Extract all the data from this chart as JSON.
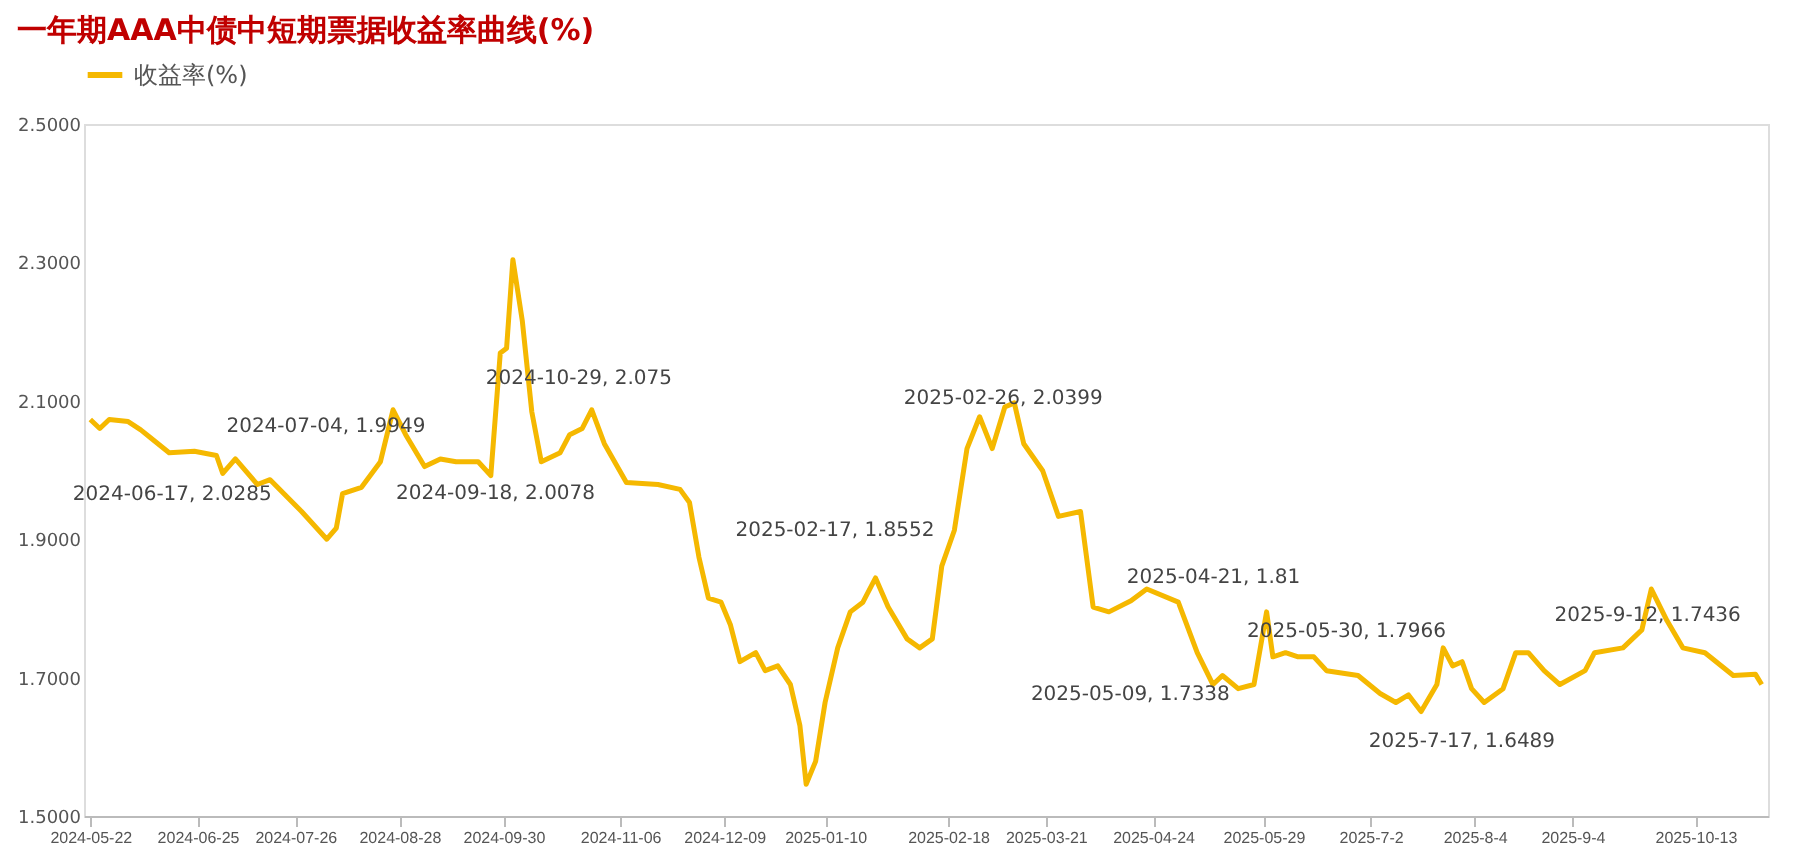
{
  "chart_data": {
    "type": "line",
    "title": "一年期AAA中债中短期票据收益率曲线(%)",
    "legend": "top",
    "grid": false,
    "marker": "none",
    "line_style": "solid",
    "x": [
      "2024-05-22",
      "2024-05-25",
      "2024-05-28",
      "2024-06-03",
      "2024-06-07",
      "2024-06-10",
      "2024-06-16",
      "2024-06-24",
      "2024-07-01",
      "2024-07-03",
      "2024-07-07",
      "2024-07-14",
      "2024-07-18",
      "2024-07-28",
      "2024-08-05",
      "2024-08-08",
      "2024-08-10",
      "2024-08-16",
      "2024-08-22",
      "2024-08-26",
      "2024-08-30",
      "2024-09-05",
      "2024-09-10",
      "2024-09-15",
      "2024-09-22",
      "2024-09-26",
      "2024-09-29",
      "2024-10-01",
      "2024-10-03",
      "2024-10-06",
      "2024-10-09",
      "2024-10-12",
      "2024-10-18",
      "2024-10-21",
      "2024-10-25",
      "2024-10-28",
      "2024-11-01",
      "2024-11-08",
      "2024-11-18",
      "2024-11-25",
      "2024-11-28",
      "2024-12-01",
      "2024-12-04",
      "2024-12-08",
      "2024-12-11",
      "2024-12-14",
      "2024-12-19",
      "2024-12-22",
      "2024-12-26",
      "2024-12-30",
      "2025-01-02",
      "2025-01-04",
      "2025-01-07",
      "2025-01-10",
      "2025-01-14",
      "2025-01-18",
      "2025-01-22",
      "2025-01-26",
      "2025-01-30",
      "2025-02-05",
      "2025-02-09",
      "2025-02-13",
      "2025-02-16",
      "2025-02-20",
      "2025-02-24",
      "2025-02-28",
      "2025-03-04",
      "2025-03-08",
      "2025-03-11",
      "2025-03-14",
      "2025-03-20",
      "2025-03-25",
      "2025-04-01",
      "2025-04-05",
      "2025-04-10",
      "2025-04-17",
      "2025-04-22",
      "2025-05-02",
      "2025-05-08",
      "2025-05-13",
      "2025-05-16",
      "2025-05-21",
      "2025-05-26",
      "2025-05-30",
      "2025-06-01",
      "2025-06-05",
      "2025-06-09",
      "2025-06-14",
      "2025-06-18",
      "2025-06-28",
      "2025-07-05",
      "2025-07-10",
      "2025-07-14",
      "2025-07-18",
      "2025-07-23",
      "2025-07-25",
      "2025-07-28",
      "2025-07-31",
      "2025-08-03",
      "2025-08-07",
      "2025-08-13",
      "2025-08-17",
      "2025-08-21",
      "2025-08-26",
      "2025-08-31",
      "2025-09-08",
      "2025-09-11",
      "2025-09-20",
      "2025-09-26",
      "2025-09-29",
      "2025-10-04",
      "2025-10-09",
      "2025-10-16",
      "2025-10-25",
      "2025-11-01",
      "2025-11-03"
    ],
    "series": [
      {
        "name": "收益率(%)",
        "color": "#f5b800",
        "values": [
          2.073,
          2.06,
          2.073,
          2.07,
          2.058,
          2.047,
          2.025,
          2.027,
          2.021,
          1.995,
          2.016,
          1.979,
          1.986,
          1.94,
          1.9,
          1.916,
          1.966,
          1.975,
          2.012,
          2.087,
          2.051,
          2.005,
          2.016,
          2.012,
          2.012,
          1.992,
          2.169,
          2.176,
          2.304,
          2.215,
          2.084,
          2.012,
          2.025,
          2.051,
          2.06,
          2.087,
          2.038,
          1.982,
          1.979,
          1.972,
          1.953,
          1.874,
          1.815,
          1.809,
          1.776,
          1.723,
          1.736,
          1.71,
          1.717,
          1.69,
          1.631,
          1.546,
          1.579,
          1.664,
          1.743,
          1.795,
          1.809,
          1.844,
          1.802,
          1.756,
          1.743,
          1.756,
          1.861,
          1.913,
          2.031,
          2.077,
          2.031,
          2.091,
          2.097,
          2.038,
          1.999,
          1.933,
          1.94,
          1.802,
          1.795,
          1.811,
          1.828,
          1.809,
          1.736,
          1.69,
          1.703,
          1.684,
          1.69,
          1.795,
          1.73,
          1.736,
          1.73,
          1.73,
          1.71,
          1.703,
          1.677,
          1.664,
          1.675,
          1.651,
          1.69,
          1.743,
          1.717,
          1.723,
          1.684,
          1.664,
          1.684,
          1.736,
          1.736,
          1.71,
          1.69,
          1.71,
          1.736,
          1.743,
          1.769,
          1.828,
          1.782,
          1.743,
          1.736,
          1.703,
          1.705,
          1.69
        ]
      }
    ],
    "xlim": [
      "2024-05-20",
      "2025-11-05"
    ],
    "xticks": [
      {
        "value": "2024-05-22",
        "label": "2024-05-22"
      },
      {
        "value": "2024-06-25",
        "label": "2024-06-25"
      },
      {
        "value": "2024-07-26",
        "label": "2024-07-26"
      },
      {
        "value": "2024-08-28",
        "label": "2024-08-28"
      },
      {
        "value": "2024-09-30",
        "label": "2024-09-30"
      },
      {
        "value": "2024-11-06",
        "label": "2024-11-06"
      },
      {
        "value": "2024-12-09",
        "label": "2024-12-09"
      },
      {
        "value": "2025-01-10",
        "label": "2025-01-10"
      },
      {
        "value": "2025-02-18",
        "label": "2025-02-18"
      },
      {
        "value": "2025-03-21",
        "label": "2025-03-21"
      },
      {
        "value": "2025-04-24",
        "label": "2025-04-24"
      },
      {
        "value": "2025-05-29",
        "label": "2025-05-29"
      },
      {
        "value": "2025-07-02",
        "label": "2025-7-2"
      },
      {
        "value": "2025-08-04",
        "label": "2025-8-4"
      },
      {
        "value": "2025-09-04",
        "label": "2025-9-4"
      },
      {
        "value": "2025-10-13",
        "label": "2025-10-13"
      }
    ],
    "ylim": [
      1.5,
      2.5
    ],
    "yticks": [
      {
        "value": 1.5,
        "label": "1.5000"
      },
      {
        "value": 1.7,
        "label": "1.7000"
      },
      {
        "value": 1.9,
        "label": "1.9000"
      },
      {
        "value": 2.1,
        "label": "2.1000"
      },
      {
        "value": 2.3,
        "label": "2.3000"
      },
      {
        "value": 2.5,
        "label": "2.5000"
      }
    ],
    "annotations": [
      {
        "text": "2024-06-17, 2.0285",
        "x": "2024-06-17",
        "y": 2.0285
      },
      {
        "text": "2024-07-04, 1.9949",
        "x": "2024-07-04",
        "y": 1.9949
      },
      {
        "text": "2024-09-18, 2.0078",
        "x": "2024-09-18",
        "y": 2.0078
      },
      {
        "text": "2024-10-29, 2.075",
        "x": "2024-10-29",
        "y": 2.075
      },
      {
        "text": "2025-02-17, 1.8552",
        "x": "2025-02-17",
        "y": 1.8552
      },
      {
        "text": "2025-02-26, 2.0399",
        "x": "2025-02-26",
        "y": 2.0399
      },
      {
        "text": "2025-04-21, 1.81",
        "x": "2025-04-21",
        "y": 1.81
      },
      {
        "text": "2025-05-30, 1.7966",
        "x": "2025-05-30",
        "y": 1.7966
      },
      {
        "text": "2025-05-09, 1.7338",
        "x": "2025-05-09",
        "y": 1.7338
      },
      {
        "text": "2025-7-17, 1.6489",
        "x": "2025-07-17",
        "y": 1.6489
      },
      {
        "text": "2025-9-12, 1.7436",
        "x": "2025-09-12",
        "y": 1.7436
      }
    ]
  }
}
